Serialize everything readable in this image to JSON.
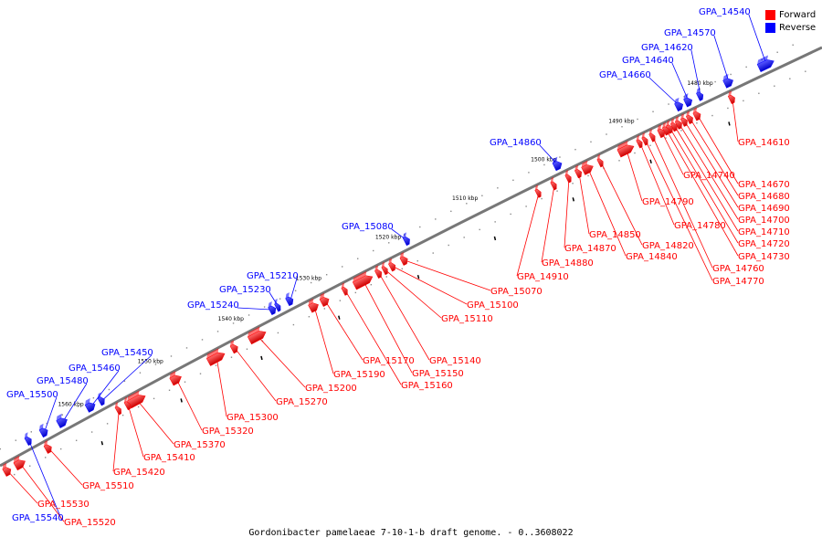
{
  "caption": "Gordonibacter pamelaeae 7-10-1-b draft genome. - 0..3608022",
  "legend": [
    {
      "label": "Forward",
      "color": "#ff0000"
    },
    {
      "label": "Reverse",
      "color": "#0000ff"
    }
  ],
  "colors": {
    "forward": "#ff0000",
    "reverse": "#0000ff",
    "backbone": "#777777"
  },
  "scale_labels": [
    "1480 kbp",
    "1490 kbp",
    "1500 kbp",
    "1510 kbp",
    "1520 kbp",
    "1530 kbp",
    "1540 kbp",
    "1550 kbp",
    "1560 kbp"
  ],
  "reverse_genes": [
    "GPA_14540",
    "GPA_14570",
    "GPA_14620",
    "GPA_14640",
    "GPA_14660",
    "GPA_14860",
    "GPA_15080",
    "GPA_15210",
    "GPA_15230",
    "GPA_15240",
    "GPA_15450",
    "GPA_15460",
    "GPA_15480",
    "GPA_15500",
    "GPA_15540"
  ],
  "forward_genes": [
    "GPA_14610",
    "GPA_14670",
    "GPA_14680",
    "GPA_14690",
    "GPA_14700",
    "GPA_14710",
    "GPA_14720",
    "GPA_14730",
    "GPA_14740",
    "GPA_14760",
    "GPA_14770",
    "GPA_14780",
    "GPA_14790",
    "GPA_14820",
    "GPA_14840",
    "GPA_14850",
    "GPA_14870",
    "GPA_14880",
    "GPA_14910",
    "GPA_15070",
    "GPA_15100",
    "GPA_15110",
    "GPA_15140",
    "GPA_15150",
    "GPA_15160",
    "GPA_15170",
    "GPA_15190",
    "GPA_15200",
    "GPA_15270",
    "GPA_15300",
    "GPA_15320",
    "GPA_15370",
    "GPA_15410",
    "GPA_15420",
    "GPA_15510",
    "GPA_15520",
    "GPA_15530"
  ]
}
